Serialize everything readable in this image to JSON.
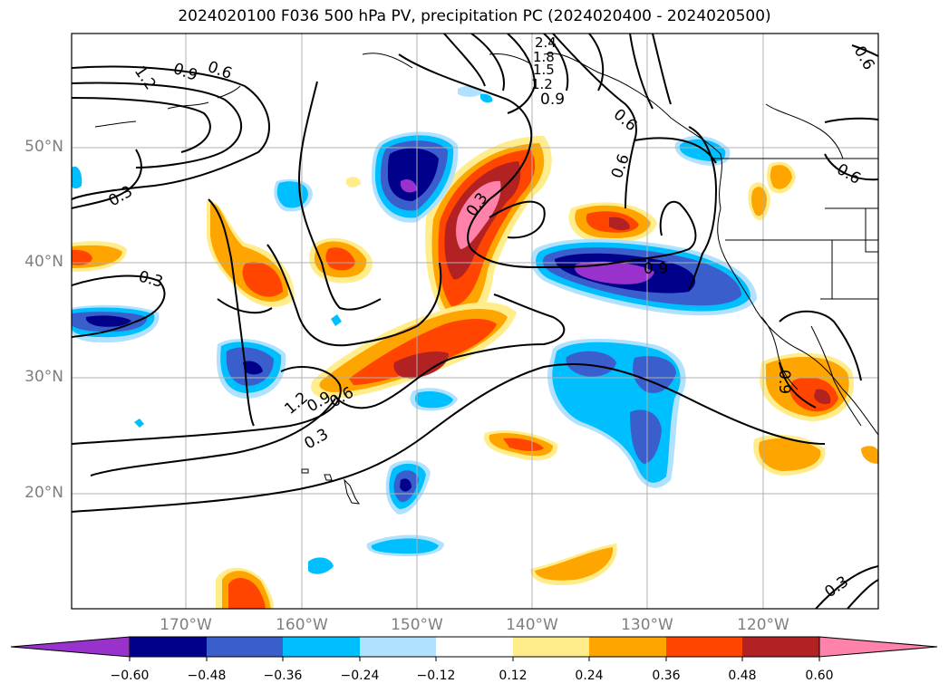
{
  "title": "2024020100 F036 500 hPa PV, precipitation PC (2024020400 - 2024020500)",
  "lat_labels": [
    "50°N",
    "40°N",
    "30°N",
    "20°N"
  ],
  "lon_labels": [
    "170°W",
    "160°W",
    "150°W",
    "140°W",
    "130°W",
    "120°W"
  ],
  "contour_labels": [
    "1.2",
    "0.9",
    "0.6",
    "0.3",
    "0.3",
    "0.3",
    "1.2",
    "0.9",
    "0.6",
    "0.3",
    "0.9",
    "0.6",
    "0.9",
    "0.6",
    "0.6",
    "0.3",
    "0.9",
    "0.6",
    "1.2",
    "1.5",
    "1.8",
    "2.4"
  ],
  "colorbar": {
    "ticks": [
      "−0.60",
      "−0.48",
      "−0.36",
      "−0.24",
      "−0.12",
      "0.12",
      "0.24",
      "0.36",
      "0.48",
      "0.60"
    ],
    "colors": [
      "#9932cc",
      "#00008b",
      "#3a5fcd",
      "#00bfff",
      "#b0e2ff",
      "#ffffff",
      "#ffec8b",
      "#ffa500",
      "#ff4500",
      "#b22222",
      "#ff82ab"
    ]
  }
}
